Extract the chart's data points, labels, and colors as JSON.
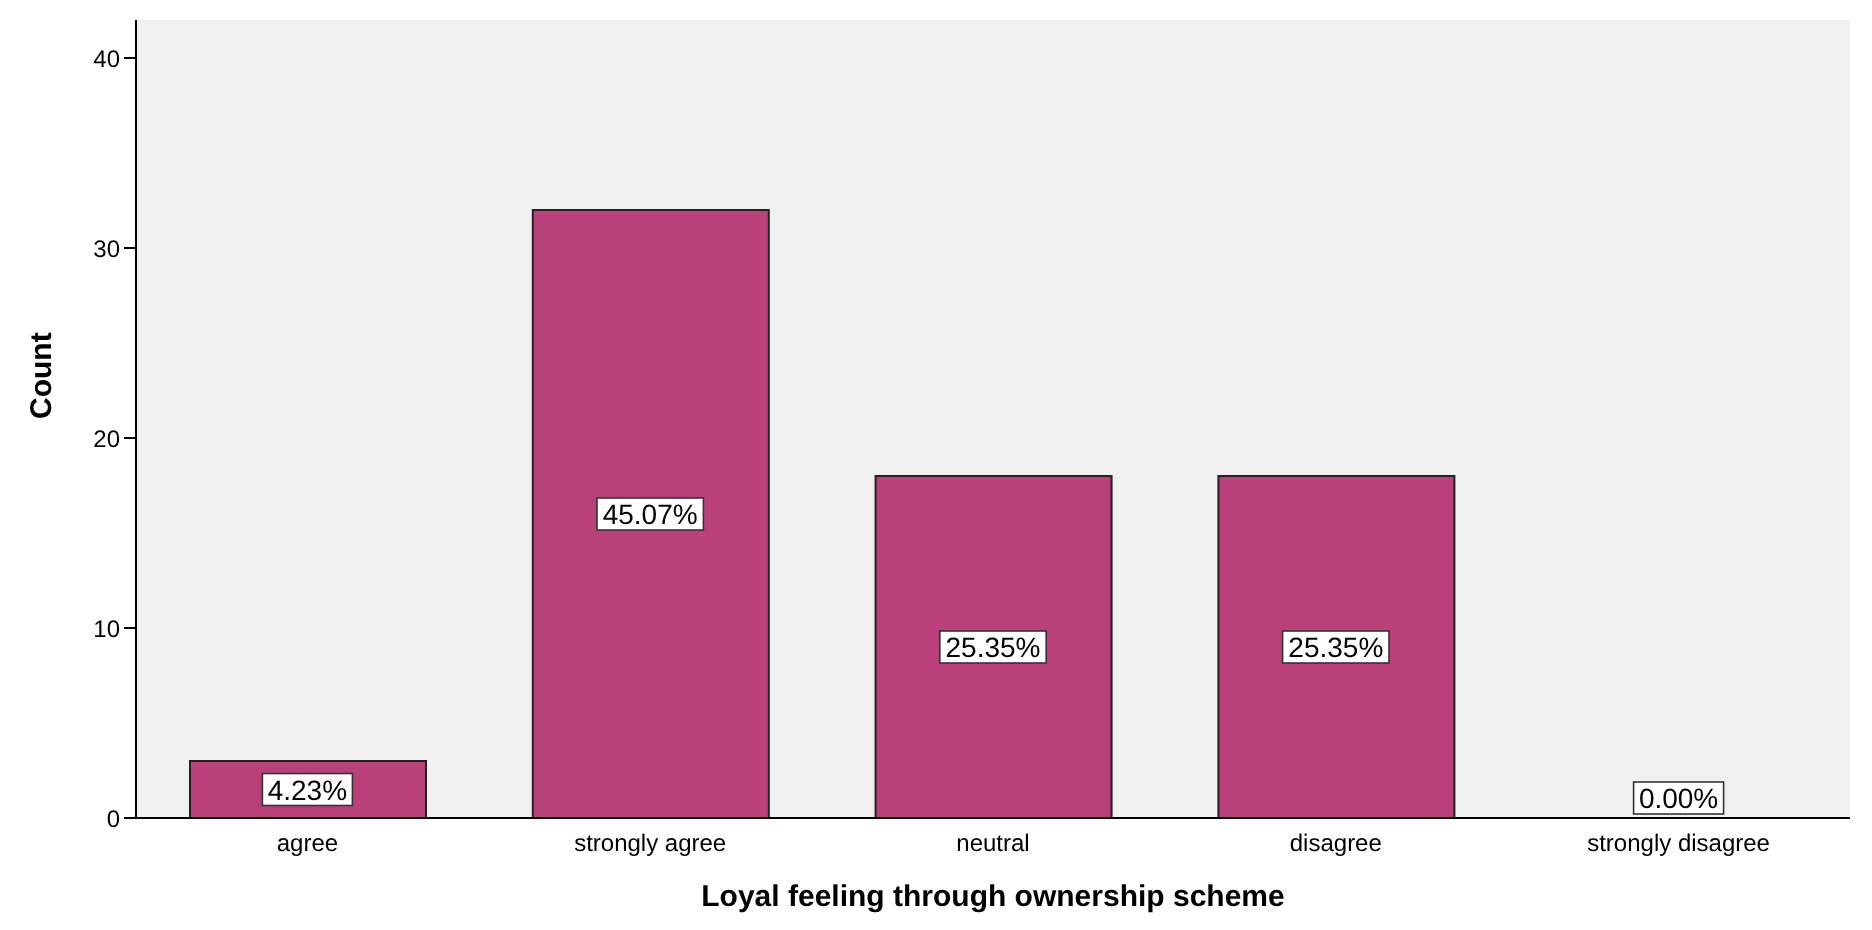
{
  "chart_data": {
    "type": "bar",
    "xlabel": "Loyal feeling through ownership scheme",
    "ylabel": "Count",
    "categories": [
      "agree",
      "strongly agree",
      "neutral",
      "disagree",
      "strongly disagree"
    ],
    "values": [
      3,
      32,
      18,
      18,
      0
    ],
    "annotations": [
      "4.23%",
      "45.07%",
      "25.35%",
      "25.35%",
      "0.00%"
    ],
    "color": "#b94078",
    "ylim": [
      0,
      42
    ],
    "yticks": [
      0,
      10,
      20,
      30,
      40
    ],
    "grid": false,
    "legend": false
  }
}
